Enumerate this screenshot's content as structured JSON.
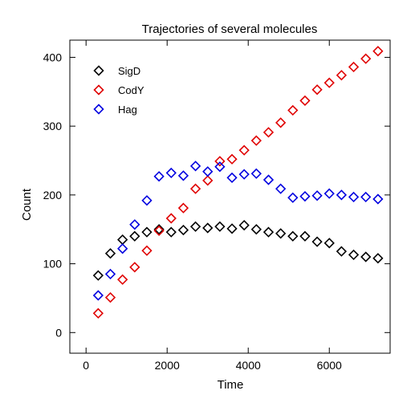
{
  "chart_data": {
    "type": "scatter",
    "title": "Trajectories of several molecules",
    "xlabel": "Time",
    "ylabel": "Count",
    "xlim": [
      -400,
      7500
    ],
    "ylim": [
      -30,
      425
    ],
    "xticks": [
      0,
      2000,
      4000,
      6000
    ],
    "yticks": [
      0,
      100,
      200,
      300,
      400
    ],
    "grid": false,
    "legend_position": "top-left",
    "x": [
      300,
      600,
      900,
      1200,
      1500,
      1800,
      2100,
      2400,
      2700,
      3000,
      3300,
      3600,
      3900,
      4200,
      4500,
      4800,
      5100,
      5400,
      5700,
      6000,
      6300,
      6600,
      6900,
      7200
    ],
    "series": [
      {
        "name": "SigD",
        "color": "#000000",
        "values": [
          83,
          115,
          135,
          140,
          146,
          150,
          146,
          149,
          154,
          152,
          154,
          151,
          156,
          150,
          146,
          144,
          140,
          140,
          132,
          130,
          118,
          113,
          110,
          108
        ]
      },
      {
        "name": "CodY",
        "color": "#e00000",
        "values": [
          28,
          51,
          77,
          95,
          119,
          148,
          166,
          181,
          209,
          221,
          249,
          252,
          265,
          279,
          291,
          305,
          323,
          337,
          353,
          363,
          374,
          386,
          398,
          409
        ]
      },
      {
        "name": "Hag",
        "color": "#0000e0",
        "values": [
          54,
          85,
          122,
          157,
          192,
          227,
          232,
          228,
          242,
          234,
          241,
          225,
          230,
          231,
          222,
          209,
          196,
          198,
          199,
          202,
          200,
          197,
          197,
          194
        ]
      }
    ]
  }
}
